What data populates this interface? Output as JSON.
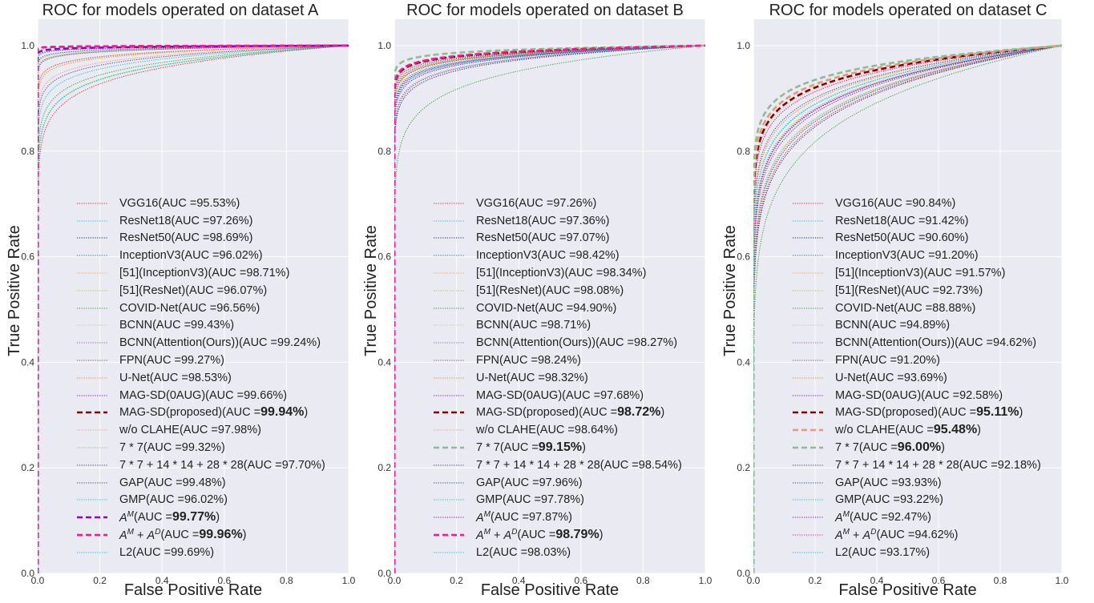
{
  "chart_data": [
    {
      "type": "line",
      "title": "ROC for models operated on dataset A",
      "xlabel": "False Positive Rate",
      "ylabel": "True Positive Rate",
      "xlim": [
        0.0,
        1.0
      ],
      "ylim": [
        0.0,
        1.05
      ],
      "x_ticks": [
        "0.0",
        "0.2",
        "0.4",
        "0.6",
        "0.8",
        "1.0"
      ],
      "y_ticks": [
        "0.0",
        "0.2",
        "0.4",
        "0.6",
        "0.8",
        "1.0"
      ],
      "grid": true,
      "legend_position": "lower-center",
      "series": [
        {
          "name": "VGG16",
          "auc": "95.53%",
          "color": "#d62728",
          "style": "dotted",
          "bold": false
        },
        {
          "name": "ResNet18",
          "auc": "97.26%",
          "color": "#17becf",
          "style": "dotted",
          "bold": false
        },
        {
          "name": "ResNet50",
          "auc": "98.69%",
          "color": "#1f1f8f",
          "style": "dotted",
          "bold": false
        },
        {
          "name": "InceptionV3",
          "auc": "96.02%",
          "color": "#1f77b4",
          "style": "dotted",
          "bold": false
        },
        {
          "name": "[51](InceptionV3)",
          "auc": "98.71%",
          "color": "#ff9f40",
          "style": "dotted",
          "bold": false
        },
        {
          "name": "[51](ResNet)",
          "auc": "96.07%",
          "color": "#bcbd22",
          "style": "dotted",
          "bold": false
        },
        {
          "name": "COVID-Net",
          "auc": "96.56%",
          "color": "#2ca02c",
          "style": "dotted",
          "bold": false
        },
        {
          "name": "BCNN",
          "auc": "99.43%",
          "color": "#98df8a",
          "style": "dotted",
          "bold": false
        },
        {
          "name": "BCNN(Attention(Ours))",
          "auc": "99.24%",
          "color": "#9467bd",
          "style": "dotted",
          "bold": false
        },
        {
          "name": "FPN",
          "auc": "99.27%",
          "color": "#8c564b",
          "style": "dotted",
          "bold": false
        },
        {
          "name": "U-Net",
          "auc": "98.53%",
          "color": "#ff7f0e",
          "style": "dotted",
          "bold": false
        },
        {
          "name": "MAG-SD(0AUG)",
          "auc": "99.66%",
          "color": "#9400d3",
          "style": "dotted",
          "bold": false
        },
        {
          "name": "MAG-SD(proposed)",
          "auc": "99.94%",
          "color": "#8b0000",
          "style": "dashed",
          "bold": true
        },
        {
          "name": "w/o CLAHE",
          "auc": "97.98%",
          "color": "#e9967a",
          "style": "dotted",
          "bold": false
        },
        {
          "name": "7 * 7",
          "auc": "99.32%",
          "color": "#8fbc8f",
          "style": "dotted",
          "bold": false
        },
        {
          "name": "7 * 7 + 14 * 14 + 28 * 28",
          "auc": "97.70%",
          "color": "#483d8b",
          "style": "dotted",
          "bold": false
        },
        {
          "name": "GAP",
          "auc": "99.48%",
          "color": "#2f4f6f",
          "style": "dotted",
          "bold": false
        },
        {
          "name": "GMP",
          "auc": "96.02%",
          "color": "#00ced1",
          "style": "dotted",
          "bold": false
        },
        {
          "name": "A^M",
          "auc": "99.77%",
          "color": "#9400d3",
          "style": "dashed",
          "bold": true
        },
        {
          "name": "A^M + A^D",
          "auc": "99.96%",
          "color": "#ff1493",
          "style": "dashed",
          "bold": true
        },
        {
          "name": "L2",
          "auc": "99.69%",
          "color": "#00bfff",
          "style": "dotted",
          "bold": false
        }
      ]
    },
    {
      "type": "line",
      "title": "ROC for models operated on dataset B",
      "xlabel": "False Positive Rate",
      "ylabel": "True Positive Rate",
      "xlim": [
        0.0,
        1.0
      ],
      "ylim": [
        0.0,
        1.05
      ],
      "x_ticks": [
        "0.0",
        "0.2",
        "0.4",
        "0.6",
        "0.8",
        "1.0"
      ],
      "y_ticks": [
        "0.0",
        "0.2",
        "0.4",
        "0.6",
        "0.8",
        "1.0"
      ],
      "grid": true,
      "legend_position": "lower-center",
      "series": [
        {
          "name": "VGG16",
          "auc": "97.26%",
          "color": "#d62728",
          "style": "dotted",
          "bold": false
        },
        {
          "name": "ResNet18",
          "auc": "97.36%",
          "color": "#17becf",
          "style": "dotted",
          "bold": false
        },
        {
          "name": "ResNet50",
          "auc": "97.07%",
          "color": "#1f1f8f",
          "style": "dotted",
          "bold": false
        },
        {
          "name": "InceptionV3",
          "auc": "98.42%",
          "color": "#1f77b4",
          "style": "dotted",
          "bold": false
        },
        {
          "name": "[51](InceptionV3)",
          "auc": "98.34%",
          "color": "#ff9f40",
          "style": "dotted",
          "bold": false
        },
        {
          "name": "[51](ResNet)",
          "auc": "98.08%",
          "color": "#bcbd22",
          "style": "dotted",
          "bold": false
        },
        {
          "name": "COVID-Net",
          "auc": "94.90%",
          "color": "#2ca02c",
          "style": "dotted",
          "bold": false
        },
        {
          "name": "BCNN",
          "auc": "98.71%",
          "color": "#98df8a",
          "style": "dotted",
          "bold": false
        },
        {
          "name": "BCNN(Attention(Ours))",
          "auc": "98.27%",
          "color": "#9467bd",
          "style": "dotted",
          "bold": false
        },
        {
          "name": "FPN",
          "auc": "98.24%",
          "color": "#8c564b",
          "style": "dotted",
          "bold": false
        },
        {
          "name": "U-Net",
          "auc": "98.32%",
          "color": "#ff7f0e",
          "style": "dotted",
          "bold": false
        },
        {
          "name": "MAG-SD(0AUG)",
          "auc": "97.68%",
          "color": "#9400d3",
          "style": "dotted",
          "bold": false
        },
        {
          "name": "MAG-SD(proposed)",
          "auc": "98.72%",
          "color": "#8b0000",
          "style": "dashed",
          "bold": true
        },
        {
          "name": "w/o CLAHE",
          "auc": "98.64%",
          "color": "#e9967a",
          "style": "dotted",
          "bold": false
        },
        {
          "name": "7 * 7",
          "auc": "99.15%",
          "color": "#8fbc8f",
          "style": "dashed",
          "bold": true
        },
        {
          "name": "7 * 7 + 14 * 14 + 28 * 28",
          "auc": "98.54%",
          "color": "#483d8b",
          "style": "dotted",
          "bold": false
        },
        {
          "name": "GAP",
          "auc": "97.96%",
          "color": "#2f4f6f",
          "style": "dotted",
          "bold": false
        },
        {
          "name": "GMP",
          "auc": "97.78%",
          "color": "#00ced1",
          "style": "dotted",
          "bold": false
        },
        {
          "name": "A^M",
          "auc": "97.87%",
          "color": "#9400d3",
          "style": "dotted",
          "bold": false
        },
        {
          "name": "A^M + A^D",
          "auc": "98.79%",
          "color": "#ff1493",
          "style": "dashed",
          "bold": true
        },
        {
          "name": "L2",
          "auc": "98.03%",
          "color": "#00bfff",
          "style": "dotted",
          "bold": false
        }
      ]
    },
    {
      "type": "line",
      "title": "ROC for models operated on dataset C",
      "xlabel": "False Positive Rate",
      "ylabel": "True Positive Rate",
      "xlim": [
        0.0,
        1.0
      ],
      "ylim": [
        0.0,
        1.05
      ],
      "x_ticks": [
        "0.0",
        "0.2",
        "0.4",
        "0.6",
        "0.8",
        "1.0"
      ],
      "y_ticks": [
        "0.0",
        "0.2",
        "0.4",
        "0.6",
        "0.8",
        "1.0"
      ],
      "grid": true,
      "legend_position": "lower-center",
      "series": [
        {
          "name": "VGG16",
          "auc": "90.84%",
          "color": "#d62728",
          "style": "dotted",
          "bold": false
        },
        {
          "name": "ResNet18",
          "auc": "91.42%",
          "color": "#17becf",
          "style": "dotted",
          "bold": false
        },
        {
          "name": "ResNet50",
          "auc": "90.60%",
          "color": "#1f1f8f",
          "style": "dotted",
          "bold": false
        },
        {
          "name": "InceptionV3",
          "auc": "91.20%",
          "color": "#1f77b4",
          "style": "dotted",
          "bold": false
        },
        {
          "name": "[51](InceptionV3)",
          "auc": "91.57%",
          "color": "#ff9f40",
          "style": "dotted",
          "bold": false
        },
        {
          "name": "[51](ResNet)",
          "auc": "92.73%",
          "color": "#bcbd22",
          "style": "dotted",
          "bold": false
        },
        {
          "name": "COVID-Net",
          "auc": "88.88%",
          "color": "#2ca02c",
          "style": "dotted",
          "bold": false
        },
        {
          "name": "BCNN",
          "auc": "94.89%",
          "color": "#98df8a",
          "style": "dotted",
          "bold": false
        },
        {
          "name": "BCNN(Attention(Ours))",
          "auc": "94.62%",
          "color": "#9467bd",
          "style": "dotted",
          "bold": false
        },
        {
          "name": "FPN",
          "auc": "91.20%",
          "color": "#8c564b",
          "style": "dotted",
          "bold": false
        },
        {
          "name": "U-Net",
          "auc": "93.69%",
          "color": "#ff7f0e",
          "style": "dotted",
          "bold": false
        },
        {
          "name": "MAG-SD(0AUG)",
          "auc": "92.58%",
          "color": "#9400d3",
          "style": "dotted",
          "bold": false
        },
        {
          "name": "MAG-SD(proposed)",
          "auc": "95.11%",
          "color": "#8b0000",
          "style": "dashed",
          "bold": true
        },
        {
          "name": "w/o CLAHE",
          "auc": "95.48%",
          "color": "#e9967a",
          "style": "dashed",
          "bold": true
        },
        {
          "name": "7 * 7",
          "auc": "96.00%",
          "color": "#8fbc8f",
          "style": "dashed",
          "bold": true
        },
        {
          "name": "7 * 7 + 14 * 14 + 28 * 28",
          "auc": "92.18%",
          "color": "#483d8b",
          "style": "dotted",
          "bold": false
        },
        {
          "name": "GAP",
          "auc": "93.93%",
          "color": "#2f4f6f",
          "style": "dotted",
          "bold": false
        },
        {
          "name": "GMP",
          "auc": "93.22%",
          "color": "#00ced1",
          "style": "dotted",
          "bold": false
        },
        {
          "name": "A^M",
          "auc": "92.47%",
          "color": "#9400d3",
          "style": "dotted",
          "bold": false
        },
        {
          "name": "A^M + A^D",
          "auc": "94.62%",
          "color": "#ff1493",
          "style": "dotted",
          "bold": false
        },
        {
          "name": "L2",
          "auc": "93.17%",
          "color": "#00bfff",
          "style": "dotted",
          "bold": false
        }
      ]
    }
  ]
}
